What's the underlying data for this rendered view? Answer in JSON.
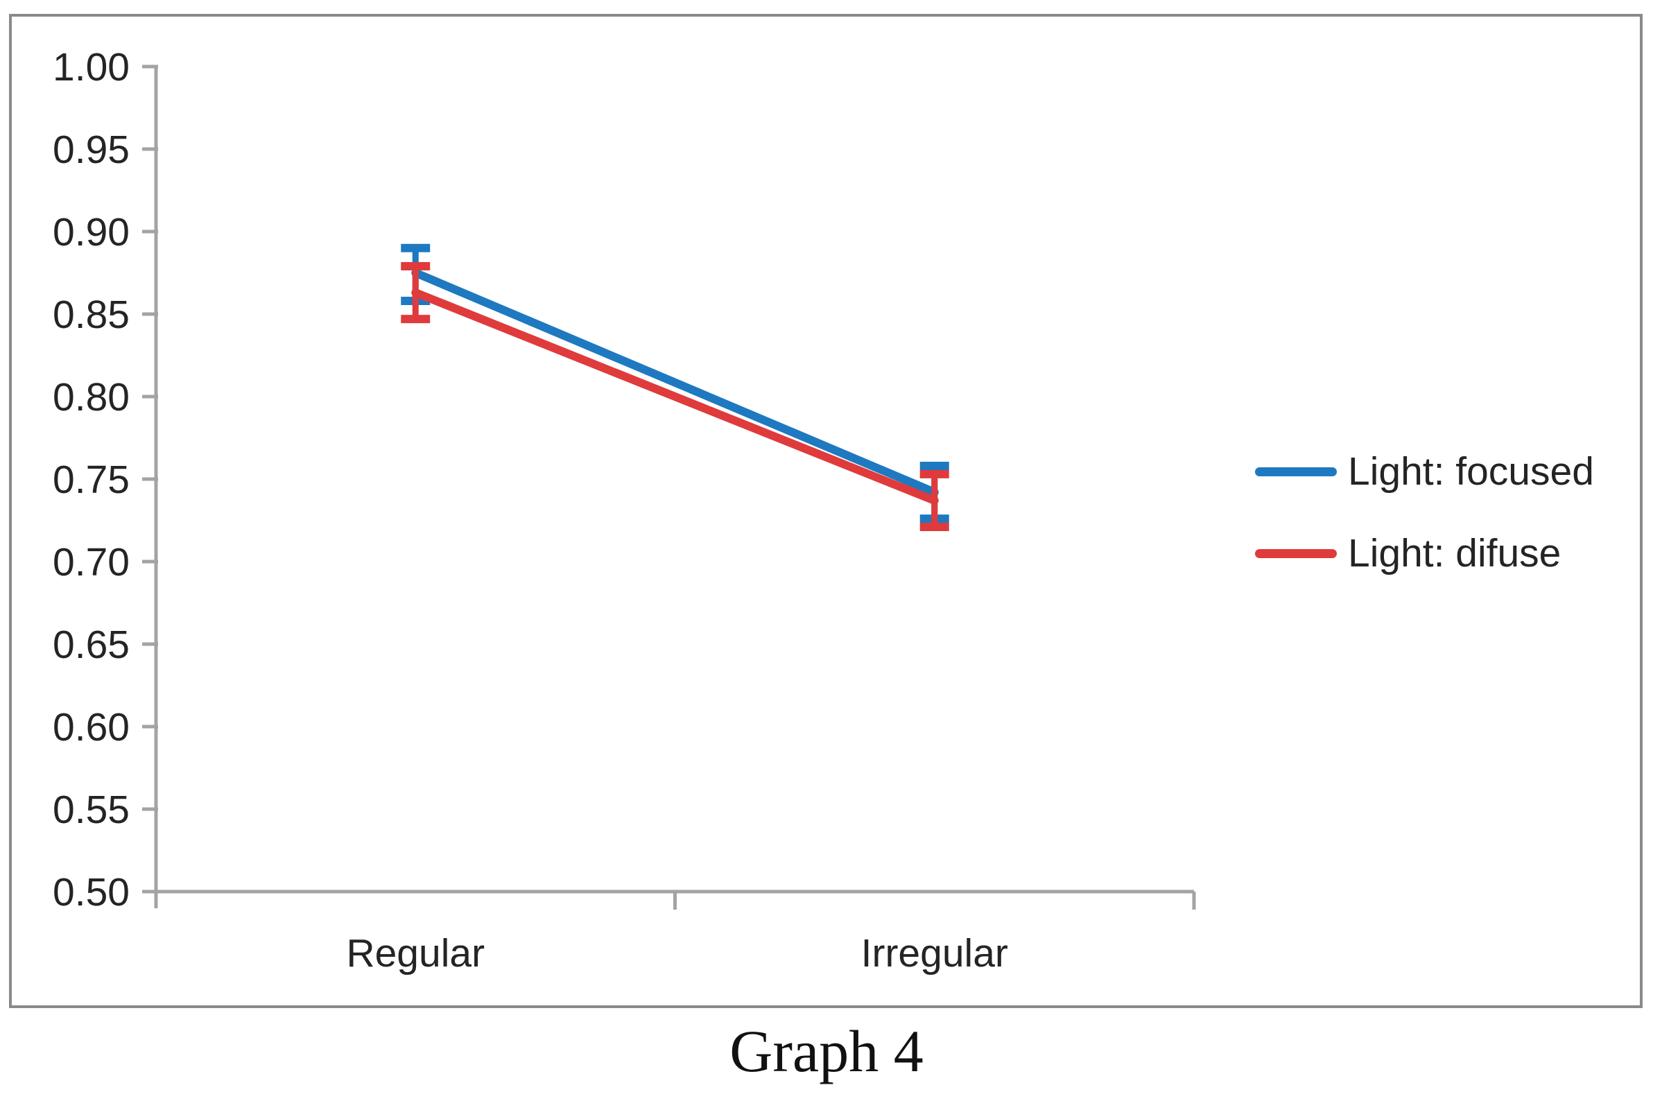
{
  "figure": {
    "caption": "Graph 4"
  },
  "colors": {
    "focused": "#1E79C0",
    "difuse": "#DF3B3C",
    "axis": "#A3A3A3",
    "border": "#8A8A8A",
    "text": "#242424"
  },
  "legend": {
    "items": [
      {
        "label": "Light: focused",
        "color": "#1E79C0"
      },
      {
        "label": "Light: difuse",
        "color": "#DF3B3C"
      }
    ]
  },
  "y_axis": {
    "tick_labels": [
      "1.00",
      "0.95",
      "0.90",
      "0.85",
      "0.80",
      "0.75",
      "0.70",
      "0.65",
      "0.60",
      "0.55",
      "0.50"
    ]
  },
  "chart_data": {
    "type": "line",
    "categories": [
      "Regular",
      "Irregular"
    ],
    "series": [
      {
        "name": "Light: focused",
        "color": "#1E79C0",
        "values": [
          0.875,
          0.742
        ],
        "error_low": [
          0.858,
          0.726
        ],
        "error_high": [
          0.89,
          0.758
        ]
      },
      {
        "name": "Light: difuse",
        "color": "#DF3B3C",
        "values": [
          0.863,
          0.737
        ],
        "error_low": [
          0.847,
          0.721
        ],
        "error_high": [
          0.879,
          0.753
        ]
      }
    ],
    "title": "Graph 4",
    "xlabel": "",
    "ylabel": "",
    "ylim": [
      0.5,
      1.0
    ],
    "ytick_step": 0.05,
    "grid": false,
    "error_bars": true,
    "legend_position": "right-middle"
  }
}
